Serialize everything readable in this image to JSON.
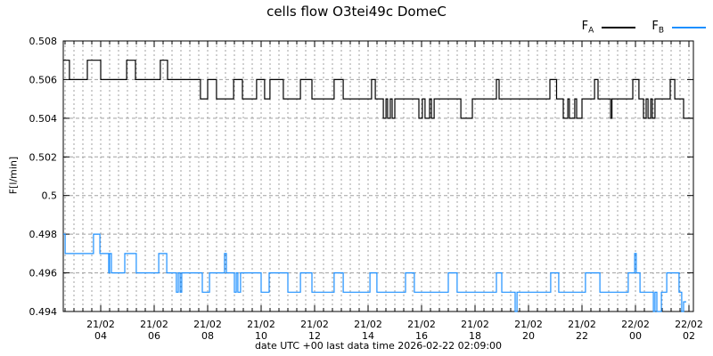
{
  "chart_data": {
    "type": "line",
    "title": "cells flow O3tei49c DomeC",
    "xlabel": "date UTC +00 last data time 2026-02-22 02:09:00",
    "ylabel": "F[l/min]",
    "colors": {
      "background": "#ffffff",
      "border": "#000000",
      "grid": "#a0a0a0"
    },
    "x_axis": {
      "unit": "hours from 21/02 00:00 UTC",
      "range_hours": [
        2.6,
        26.1667
      ],
      "minor_step_hours": 0.333333,
      "major_ticks": [
        {
          "hour": 4,
          "line1": "21/02",
          "line2": "04"
        },
        {
          "hour": 6,
          "line1": "21/02",
          "line2": "06"
        },
        {
          "hour": 8,
          "line1": "21/02",
          "line2": "08"
        },
        {
          "hour": 10,
          "line1": "21/02",
          "line2": "10"
        },
        {
          "hour": 12,
          "line1": "21/02",
          "line2": "12"
        },
        {
          "hour": 14,
          "line1": "21/02",
          "line2": "14"
        },
        {
          "hour": 16,
          "line1": "21/02",
          "line2": "16"
        },
        {
          "hour": 18,
          "line1": "21/02",
          "line2": "18"
        },
        {
          "hour": 20,
          "line1": "21/02",
          "line2": "20"
        },
        {
          "hour": 22,
          "line1": "21/02",
          "line2": "22"
        },
        {
          "hour": 24,
          "line1": "22/02",
          "line2": "00"
        },
        {
          "hour": 26,
          "line1": "22/02",
          "line2": "02"
        }
      ]
    },
    "y_axis": {
      "range": [
        0.494,
        0.508
      ],
      "ticks": [
        {
          "value": 0.494,
          "label": "0.494"
        },
        {
          "value": 0.496,
          "label": "0.496"
        },
        {
          "value": 0.498,
          "label": "0.498"
        },
        {
          "value": 0.5,
          "label": "0.5"
        },
        {
          "value": 0.502,
          "label": "0.502"
        },
        {
          "value": 0.504,
          "label": "0.504"
        },
        {
          "value": 0.506,
          "label": "0.506"
        },
        {
          "value": 0.508,
          "label": "0.508"
        }
      ]
    },
    "legend": [
      {
        "base": "F",
        "sub": "A",
        "color": "#000000"
      },
      {
        "base": "F",
        "sub": "B",
        "color": "#1e90ff"
      }
    ],
    "series": [
      {
        "name": "FA",
        "color": "#000000",
        "end_hour": 26.13,
        "steps": [
          [
            2.6,
            0.507
          ],
          [
            2.83,
            0.506
          ],
          [
            3.5,
            0.507
          ],
          [
            4.0,
            0.506
          ],
          [
            4.97,
            0.507
          ],
          [
            5.3,
            0.506
          ],
          [
            6.23,
            0.507
          ],
          [
            6.5,
            0.506
          ],
          [
            7.73,
            0.505
          ],
          [
            8.0,
            0.506
          ],
          [
            8.33,
            0.505
          ],
          [
            8.97,
            0.506
          ],
          [
            9.3,
            0.505
          ],
          [
            9.83,
            0.506
          ],
          [
            10.13,
            0.505
          ],
          [
            10.33,
            0.506
          ],
          [
            10.83,
            0.505
          ],
          [
            11.47,
            0.506
          ],
          [
            11.9,
            0.505
          ],
          [
            12.73,
            0.506
          ],
          [
            13.07,
            0.505
          ],
          [
            14.13,
            0.506
          ],
          [
            14.27,
            0.505
          ],
          [
            14.57,
            0.504
          ],
          [
            14.67,
            0.505
          ],
          [
            14.73,
            0.504
          ],
          [
            14.83,
            0.505
          ],
          [
            14.9,
            0.504
          ],
          [
            15.0,
            0.505
          ],
          [
            15.9,
            0.504
          ],
          [
            16.03,
            0.505
          ],
          [
            16.13,
            0.504
          ],
          [
            16.3,
            0.505
          ],
          [
            16.37,
            0.504
          ],
          [
            16.47,
            0.505
          ],
          [
            17.47,
            0.504
          ],
          [
            17.9,
            0.505
          ],
          [
            18.8,
            0.506
          ],
          [
            18.9,
            0.505
          ],
          [
            20.8,
            0.506
          ],
          [
            21.05,
            0.505
          ],
          [
            21.3,
            0.504
          ],
          [
            21.47,
            0.505
          ],
          [
            21.53,
            0.504
          ],
          [
            21.73,
            0.505
          ],
          [
            21.8,
            0.504
          ],
          [
            22.0,
            0.505
          ],
          [
            22.47,
            0.506
          ],
          [
            22.6,
            0.505
          ],
          [
            23.07,
            0.504
          ],
          [
            23.12,
            0.505
          ],
          [
            23.9,
            0.506
          ],
          [
            24.13,
            0.505
          ],
          [
            24.3,
            0.504
          ],
          [
            24.4,
            0.505
          ],
          [
            24.47,
            0.504
          ],
          [
            24.57,
            0.505
          ],
          [
            24.63,
            0.504
          ],
          [
            24.73,
            0.505
          ],
          [
            25.3,
            0.506
          ],
          [
            25.47,
            0.505
          ],
          [
            25.8,
            0.504
          ]
        ]
      },
      {
        "name": "FB",
        "color": "#1e90ff",
        "end_hour": 25.9,
        "steps": [
          [
            2.6,
            0.498
          ],
          [
            2.67,
            0.497
          ],
          [
            3.73,
            0.498
          ],
          [
            3.97,
            0.497
          ],
          [
            4.3,
            0.496
          ],
          [
            4.33,
            0.497
          ],
          [
            4.4,
            0.496
          ],
          [
            4.9,
            0.497
          ],
          [
            5.33,
            0.496
          ],
          [
            6.17,
            0.497
          ],
          [
            6.47,
            0.496
          ],
          [
            6.83,
            0.495
          ],
          [
            6.9,
            0.496
          ],
          [
            6.97,
            0.495
          ],
          [
            7.03,
            0.496
          ],
          [
            7.8,
            0.495
          ],
          [
            8.07,
            0.496
          ],
          [
            8.63,
            0.497
          ],
          [
            8.7,
            0.496
          ],
          [
            9.0,
            0.495
          ],
          [
            9.07,
            0.496
          ],
          [
            9.13,
            0.495
          ],
          [
            9.23,
            0.496
          ],
          [
            10.0,
            0.495
          ],
          [
            10.3,
            0.496
          ],
          [
            11.0,
            0.495
          ],
          [
            11.47,
            0.496
          ],
          [
            11.9,
            0.495
          ],
          [
            12.73,
            0.496
          ],
          [
            13.07,
            0.495
          ],
          [
            14.07,
            0.496
          ],
          [
            14.33,
            0.495
          ],
          [
            15.4,
            0.496
          ],
          [
            15.73,
            0.495
          ],
          [
            17.0,
            0.496
          ],
          [
            17.33,
            0.495
          ],
          [
            18.8,
            0.496
          ],
          [
            19.0,
            0.495
          ],
          [
            19.5,
            0.494
          ],
          [
            19.57,
            0.495
          ],
          [
            20.83,
            0.496
          ],
          [
            21.13,
            0.495
          ],
          [
            22.13,
            0.496
          ],
          [
            22.67,
            0.495
          ],
          [
            23.73,
            0.496
          ],
          [
            23.97,
            0.497
          ],
          [
            24.03,
            0.496
          ],
          [
            24.17,
            0.495
          ],
          [
            24.67,
            0.494
          ],
          [
            24.73,
            0.495
          ],
          [
            24.8,
            0.494
          ],
          [
            24.97,
            0.495
          ],
          [
            25.17,
            0.496
          ],
          [
            25.63,
            0.495
          ],
          [
            25.73,
            0.494
          ],
          [
            25.8,
            0.4945
          ]
        ]
      }
    ]
  }
}
